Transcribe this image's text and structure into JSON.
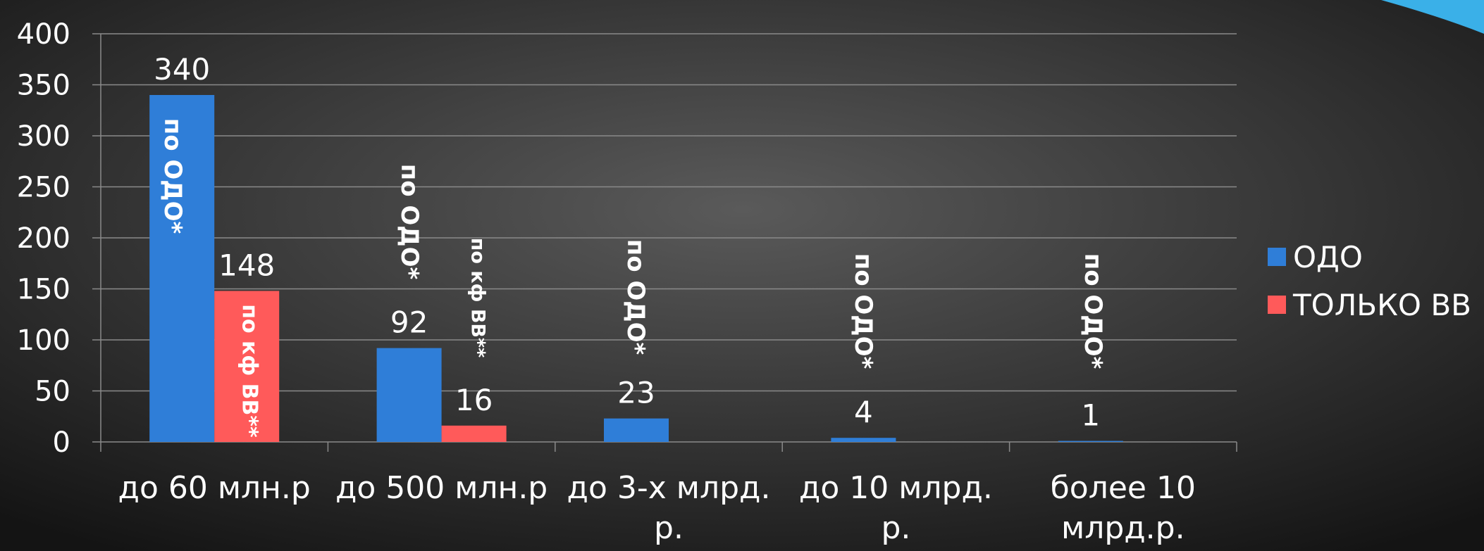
{
  "colors": {
    "background_center": "#5a5a5a",
    "background_edge": "#141414",
    "gridline": "#8a8a8a",
    "text": "#ffffff",
    "odo": "#2f7ed8",
    "vv": "#ff5a5a",
    "corner_accent": "#3ab0e8"
  },
  "chart_data": {
    "type": "bar",
    "categories": [
      "до 60 млн.р",
      "до 500 млн.р",
      "до 3-х млрд. р.",
      "до 10 млрд. р.",
      "более 10 млрд.р."
    ],
    "category_lines": [
      [
        "до 60 млн.р"
      ],
      [
        "до 500 млн.р"
      ],
      [
        "до 3-х млрд.",
        "р."
      ],
      [
        "до 10 млрд.",
        "р."
      ],
      [
        "более 10",
        "млрд.р."
      ]
    ],
    "series": [
      {
        "name": "ОДО",
        "values": [
          340,
          92,
          23,
          4,
          1
        ],
        "color": "#2f7ed8"
      },
      {
        "name": "ТОЛЬКО ВВ",
        "values": [
          148,
          16,
          null,
          null,
          null
        ],
        "color": "#ff5a5a"
      }
    ],
    "ylim": [
      0,
      400
    ],
    "yticks": [
      0,
      50,
      100,
      150,
      200,
      250,
      300,
      350,
      400
    ],
    "grid": true,
    "legend_position": "right",
    "annotations": {
      "odo": "по ОДО*",
      "vv": "по кф ВВ**"
    },
    "title": "",
    "xlabel": "",
    "ylabel": ""
  }
}
